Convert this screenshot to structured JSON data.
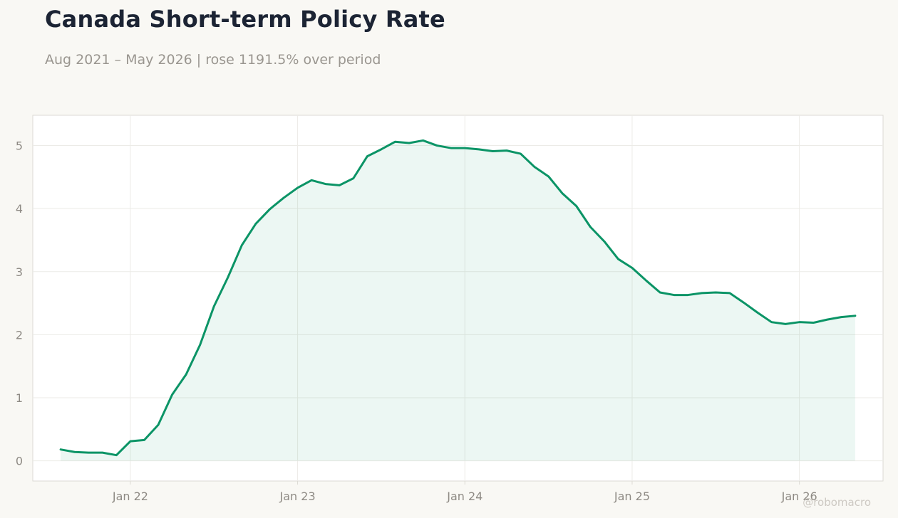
{
  "title": "Canada Short-term Policy Rate",
  "subtitle": "Aug 2021 – May 2026 | rose 1191.5% over period",
  "watermark": "@robomacro",
  "colors": {
    "line": "#0b9466",
    "fill": "#0b9466",
    "grid": "#ecebe7",
    "frame": "#dcdad4",
    "background": "#f9f8f4",
    "plot_background": "#ffffff"
  },
  "chart_data": {
    "type": "area",
    "title": "Canada Short-term Policy Rate",
    "subtitle": "Aug 2021 – May 2026 | rose 1191.5% over period",
    "xlabel": "",
    "ylabel": "",
    "x_ticks": [
      {
        "label": "Jan 22",
        "date": "2022-01"
      },
      {
        "label": "Jan 23",
        "date": "2023-01"
      },
      {
        "label": "Jan 24",
        "date": "2024-01"
      },
      {
        "label": "Jan 25",
        "date": "2025-01"
      },
      {
        "label": "Jan 26",
        "date": "2026-01"
      }
    ],
    "y_ticks": [
      0,
      1,
      2,
      3,
      4,
      5
    ],
    "xlim": [
      "2021-06",
      "2026-07"
    ],
    "ylim": [
      -0.32,
      5.48
    ],
    "grid": true,
    "legend": "none",
    "series": [
      {
        "x": [
          "2021-08",
          "2021-09",
          "2021-10",
          "2021-11",
          "2021-12",
          "2022-01",
          "2022-02",
          "2022-03",
          "2022-04",
          "2022-05",
          "2022-06",
          "2022-07",
          "2022-08",
          "2022-09",
          "2022-10",
          "2022-11",
          "2022-12",
          "2023-01",
          "2023-02",
          "2023-03",
          "2023-04",
          "2023-05",
          "2023-06",
          "2023-07",
          "2023-08",
          "2023-09",
          "2023-10",
          "2023-11",
          "2023-12",
          "2024-01",
          "2024-02",
          "2024-03",
          "2024-04",
          "2024-05",
          "2024-06",
          "2024-07",
          "2024-08",
          "2024-09",
          "2024-10",
          "2024-11",
          "2024-12",
          "2025-01",
          "2025-02",
          "2025-03",
          "2025-04",
          "2025-05",
          "2025-06",
          "2025-07",
          "2025-08",
          "2025-09",
          "2025-10",
          "2025-11",
          "2025-12",
          "2026-01",
          "2026-02",
          "2026-03",
          "2026-04",
          "2026-05"
        ],
        "values": [
          0.18,
          0.14,
          0.13,
          0.13,
          0.09,
          0.31,
          0.33,
          0.57,
          1.05,
          1.37,
          1.84,
          2.45,
          2.91,
          3.42,
          3.76,
          3.99,
          4.17,
          4.33,
          4.45,
          4.39,
          4.37,
          4.48,
          4.83,
          4.94,
          5.06,
          5.04,
          5.08,
          5.0,
          4.96,
          4.96,
          4.94,
          4.91,
          4.92,
          4.87,
          4.66,
          4.51,
          4.24,
          4.04,
          3.71,
          3.48,
          3.2,
          3.06,
          2.86,
          2.67,
          2.63,
          2.63,
          2.66,
          2.67,
          2.66,
          2.51,
          2.35,
          2.2,
          2.17,
          2.2,
          2.19,
          2.24,
          2.28,
          2.3
        ]
      }
    ]
  }
}
